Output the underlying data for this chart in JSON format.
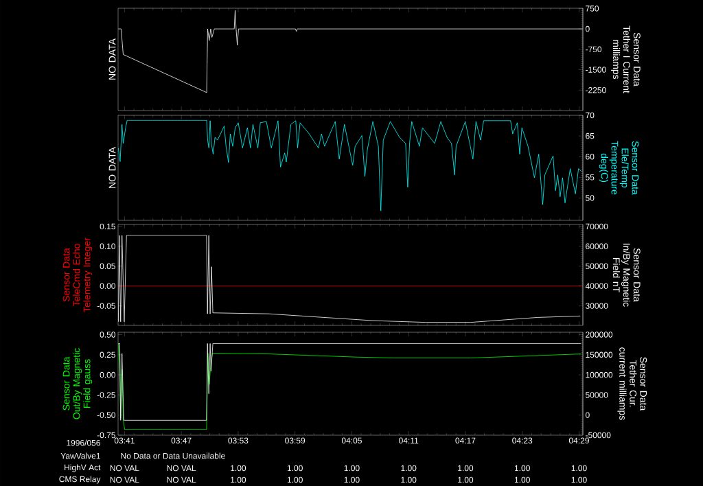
{
  "chart_data": [
    {
      "type": "line",
      "ylabel": "NO DATA",
      "y2label": "Sensor Data Tether I Current milliamps",
      "xlim": [
        3.672,
        4.49
      ],
      "xticks": [
        {
          "value": 3.683333,
          "label": null
        },
        {
          "value": 3.783333,
          "label": null
        },
        {
          "value": 3.883333,
          "label": null
        },
        {
          "value": 3.983333,
          "label": null
        },
        {
          "value": 4.083333,
          "label": null
        },
        {
          "value": 4.183333,
          "label": null
        },
        {
          "value": 4.283333,
          "label": null
        },
        {
          "value": 4.383333,
          "label": null
        },
        {
          "value": 4.483333,
          "label": null
        }
      ],
      "y2lim": [
        -3000,
        760
      ],
      "y2ticks": [
        750,
        0,
        -750,
        -1500,
        -2250
      ],
      "tick_labels": "y",
      "series": [
        {
          "color": "#ffffff",
          "axis": "y2",
          "x": [
            3.6724,
            3.6773,
            3.681,
            3.828,
            3.8286,
            3.8296,
            3.8324,
            3.835,
            3.8372,
            3.8414,
            3.8764,
            3.878,
            3.8797,
            3.8818,
            3.884,
            3.9841,
            3.9857,
            3.9874,
            4.4895
          ],
          "values": [
            0,
            0,
            -940,
            -2340,
            -1290,
            0,
            -430,
            0,
            -310,
            0,
            0,
            680,
            0,
            -600,
            0,
            0,
            -90,
            0,
            0
          ]
        }
      ]
    },
    {
      "type": "line",
      "ylabel": "NO DATA",
      "y2label": "Sensor Data Ele/Temp Temperature deg(C)",
      "xlim": [
        3.672,
        4.49
      ],
      "xticks": [
        {
          "value": 3.683333,
          "label": null
        },
        {
          "value": 3.783333,
          "label": null
        },
        {
          "value": 3.883333,
          "label": null
        },
        {
          "value": 3.983333,
          "label": null
        },
        {
          "value": 4.083333,
          "label": null
        },
        {
          "value": 4.183333,
          "label": null
        },
        {
          "value": 4.283333,
          "label": null
        },
        {
          "value": 4.383333,
          "label": null
        },
        {
          "value": 4.483333,
          "label": null
        }
      ],
      "y2lim": [
        44.6,
        70
      ],
      "y2ticks": [
        70,
        65,
        60,
        55,
        50
      ],
      "tick_labels": "y",
      "series": [
        {
          "color": "#00ffff",
          "axis": "y2",
          "x": [
            3.6724,
            3.6756,
            3.6789,
            3.681,
            3.6853,
            3.688,
            3.828,
            3.8296,
            3.8318,
            3.834,
            3.8361,
            3.8393,
            3.8426,
            3.8469,
            3.8523,
            3.8587,
            3.862,
            3.8663,
            3.8695,
            3.8738,
            3.8781,
            3.8835,
            3.891,
            3.8996,
            3.905,
            3.9093,
            3.918,
            3.9223,
            3.933,
            3.9417,
            3.9535,
            3.9578,
            3.9653,
            3.968,
            3.9761,
            3.9847,
            3.988,
            3.9923,
            4.0084,
            4.0246,
            4.03,
            4.0354,
            4.0542,
            4.0612,
            4.0704,
            4.0849,
            4.0892,
            4.1011,
            4.1064,
            4.1107,
            4.1204,
            4.1301,
            4.1344,
            4.1387,
            4.1511,
            4.1673,
            4.1781,
            4.1818,
            4.185,
            4.1888,
            4.2023,
            4.2077,
            4.2292,
            4.24,
            4.2508,
            4.2588,
            4.2642,
            4.2669,
            4.2831,
            4.2965,
            4.3019,
            4.31,
            4.3154,
            4.3628,
            4.3665,
            4.3746,
            4.3789,
            4.3827,
            4.3935,
            4.4048,
            4.4123,
            4.4193,
            4.4231,
            4.4376,
            4.4419,
            4.4457,
            4.45,
            4.4543,
            4.4586,
            4.4678,
            4.4769,
            4.4823,
            4.4877
          ],
          "values": [
            62.1,
            58.8,
            67.8,
            63.2,
            67.0,
            68.8,
            68.8,
            64.0,
            62.1,
            68.7,
            63.2,
            60.6,
            64.7,
            64.0,
            65.5,
            67.4,
            62.5,
            58.6,
            65.5,
            62.5,
            67.0,
            68.2,
            62.1,
            67.0,
            62.1,
            67.8,
            62.1,
            68.2,
            68.5,
            62.1,
            68.7,
            57.5,
            60.9,
            58.7,
            67.8,
            68.7,
            62.1,
            68.2,
            65.5,
            62.1,
            65.5,
            62.5,
            68.5,
            59.4,
            67.8,
            57.9,
            62.5,
            65.1,
            55.2,
            61.7,
            68.5,
            62.5,
            46.9,
            64.0,
            68.5,
            64.7,
            63.2,
            52.6,
            63.2,
            68.5,
            62.5,
            67.0,
            63.2,
            68.5,
            64.7,
            63.2,
            55.6,
            62.5,
            68.5,
            59.4,
            68.5,
            64.0,
            68.7,
            68.7,
            65.5,
            68.2,
            60.6,
            67.0,
            62.5,
            54.9,
            60.6,
            48.4,
            55.6,
            60.2,
            51.8,
            55.6,
            50.3,
            54.9,
            48.8,
            57.1,
            51.0,
            57.1,
            56.4
          ]
        }
      ]
    },
    {
      "type": "line",
      "ylabel": "Sensor Data TeleCmd Echo Telemetry Integer",
      "y2label": "Sensor Data In/By Magnetic Field nT",
      "xlim": [
        3.672,
        4.49
      ],
      "xticks": [
        {
          "value": 3.683333,
          "label": null
        },
        {
          "value": 3.783333,
          "label": null
        },
        {
          "value": 3.883333,
          "label": null
        },
        {
          "value": 3.983333,
          "label": null
        },
        {
          "value": 4.083333,
          "label": null
        },
        {
          "value": 4.183333,
          "label": null
        },
        {
          "value": 4.283333,
          "label": null
        },
        {
          "value": 4.383333,
          "label": null
        },
        {
          "value": 4.483333,
          "label": null
        }
      ],
      "ylim": [
        -0.099,
        0.155
      ],
      "yticks": [
        {
          "value": 0.15,
          "label": "0.15"
        },
        {
          "value": 0.1,
          "label": "0.10"
        },
        {
          "value": 0.05,
          "label": "0.05"
        },
        {
          "value": 0,
          "label": "0.00"
        },
        {
          "value": -0.05,
          "label": "-0.05"
        }
      ],
      "y2lim": [
        20200,
        71000
      ],
      "y2ticks": [
        70000,
        60000,
        50000,
        40000,
        30000
      ],
      "tick_labels": "y",
      "series": [
        {
          "color": "#ff0000",
          "axis": "y",
          "x": [
            3.672,
            4.49
          ],
          "values": [
            0,
            0
          ]
        },
        {
          "color": "#ffffff",
          "axis": "y2",
          "x": [
            3.6725,
            3.6741,
            3.6765,
            3.6789,
            3.6828,
            3.6868,
            3.8277,
            3.8293,
            3.8317,
            3.834,
            3.8364,
            3.8388,
            3.938,
            4.1192,
            4.2137,
            4.2925,
            4.4106,
            4.4855
          ],
          "values": [
            22000,
            65500,
            22000,
            65500,
            22000,
            65500,
            65500,
            26000,
            65500,
            26000,
            49700,
            26500,
            26000,
            22600,
            21700,
            21700,
            24200,
            24900
          ]
        }
      ]
    },
    {
      "type": "line",
      "ylabel": "Sensor Data Out/By Magnetic Field gauss",
      "y2label": "Sensor Data Tether Cur. current milliamps",
      "xlim": [
        3.672,
        4.49
      ],
      "xticks": [
        {
          "value": 3.683333,
          "label": "03:41"
        },
        {
          "value": 3.783333,
          "label": "03:47"
        },
        {
          "value": 3.883333,
          "label": "03:53"
        },
        {
          "value": 3.983333,
          "label": "03:59"
        },
        {
          "value": 4.083333,
          "label": "04:05"
        },
        {
          "value": 4.183333,
          "label": "04:11"
        },
        {
          "value": 4.283333,
          "label": "04:17"
        },
        {
          "value": 4.383333,
          "label": "04:23"
        },
        {
          "value": 4.483333,
          "label": "04:29"
        }
      ],
      "ylim": [
        -0.75,
        0.53
      ],
      "yticks": [
        {
          "value": 0.5,
          "label": "0.50"
        },
        {
          "value": 0.25,
          "label": "0.25"
        },
        {
          "value": 0,
          "label": "0.00"
        },
        {
          "value": -0.25,
          "label": "-0.25"
        },
        {
          "value": -0.5,
          "label": "-0.50"
        },
        {
          "value": -0.75,
          "label": "-0.75"
        }
      ],
      "y2lim": [
        -50000,
        206000
      ],
      "y2ticks": [
        200000,
        150000,
        100000,
        50000,
        0,
        -50000
      ],
      "series": [
        {
          "color": "#00ff00",
          "axis": "y",
          "x": [
            3.6726,
            3.6749,
            3.6765,
            3.6789,
            3.6812,
            3.6836,
            3.8277,
            3.8301,
            3.8325,
            3.8348,
            3.838,
            3.938,
            4.0956,
            4.1585,
            4.2925,
            4.3713,
            4.4871
          ],
          "values": [
            0.39,
            0.04,
            -0.54,
            0.07,
            -0.57,
            -0.68,
            -0.68,
            0.27,
            -0.12,
            0.1,
            0.27,
            0.26,
            0.22,
            0.21,
            0.21,
            0.23,
            0.26
          ]
        },
        {
          "color": "#ffffff",
          "axis": "y2",
          "x": [
            3.6726,
            3.6749,
            3.6765,
            3.6789,
            3.682,
            3.8277,
            3.8293,
            3.8317,
            3.834,
            3.8356,
            3.8388,
            4.4871
          ],
          "values": [
            178000,
            178000,
            -13000,
            153000,
            -13000,
            -13000,
            178000,
            53000,
            178000,
            109000,
            178000,
            178000
          ]
        }
      ],
      "annotations": [
        "1996/056",
        "YawValve1",
        "No Data or Data Unavailable",
        "HighV Act",
        "NO VAL",
        "NO VAL",
        "1.00",
        "1.00",
        "1.00",
        "1.00",
        "1.00",
        "1.00",
        "1.00",
        "CMS Relay",
        "NO VAL",
        "NO VAL",
        "1.00",
        "1.00",
        "1.00",
        "1.00",
        "1.00",
        "1.00",
        "1.00"
      ]
    }
  ]
}
